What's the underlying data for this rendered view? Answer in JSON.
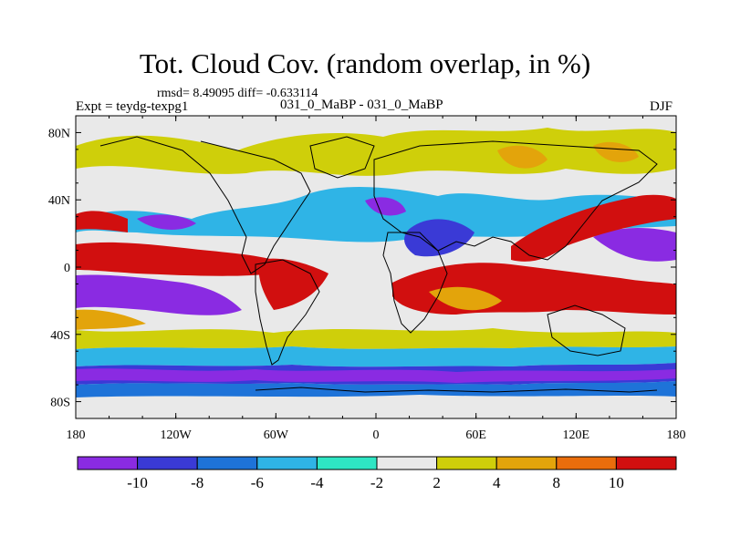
{
  "header": {
    "title": "Tot. Cloud Cov. (random overlap, in %)",
    "stats": "rmsd= 8.49095 diff= -0.633114",
    "expt": "Expt = teydg-texpg1",
    "runs": "031_0_MaBP - 031_0_MaBP",
    "season": "DJF"
  },
  "map": {
    "y_tick_labels": [
      "80N",
      "40N",
      "0",
      "40S",
      "80S"
    ],
    "x_tick_labels": [
      "180",
      "120W",
      "60W",
      "0",
      "60E",
      "120E",
      "180"
    ]
  },
  "colorbar": {
    "colors": [
      "#8a2be2",
      "#3a3ad6",
      "#1e73d8",
      "#2fb4e6",
      "#2ee6c4",
      "#e9e9e9",
      "#cfcf0a",
      "#e3a40b",
      "#ea6d0c",
      "#d10f0f"
    ],
    "labels": [
      "-10",
      "-8",
      "-6",
      "-4",
      "-2",
      "2",
      "4",
      "8",
      "10"
    ]
  }
}
